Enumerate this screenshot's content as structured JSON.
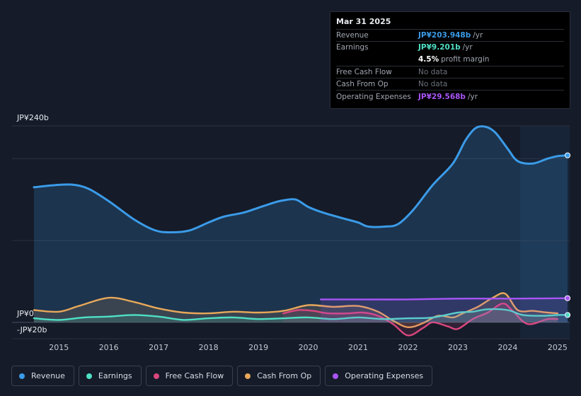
{
  "tooltip": {
    "date": "Mar 31 2025",
    "revenue": {
      "label": "Revenue",
      "value": "JP¥203.948b",
      "unit": "/yr",
      "color": "#3b9be8"
    },
    "earnings": {
      "label": "Earnings",
      "value": "JP¥9.201b",
      "unit": "/yr",
      "color": "#4fe0c5"
    },
    "margin": {
      "value": "4.5%",
      "text": "profit margin"
    },
    "fcf": {
      "label": "Free Cash Flow",
      "value": "No data"
    },
    "cfo": {
      "label": "Cash From Op",
      "value": "No data"
    },
    "opex": {
      "label": "Operating Expenses",
      "value": "JP¥29.568b",
      "unit": "/yr",
      "color": "#a855f7"
    }
  },
  "legend": [
    {
      "label": "Revenue",
      "color": "#3b9be8"
    },
    {
      "label": "Earnings",
      "color": "#4fe0c5"
    },
    {
      "label": "Free Cash Flow",
      "color": "#d9477e"
    },
    {
      "label": "Cash From Op",
      "color": "#e8a85a"
    },
    {
      "label": "Operating Expenses",
      "color": "#a855f7"
    }
  ],
  "chart_data": {
    "type": "line",
    "title": "",
    "xlabel": "",
    "ylabel": "",
    "ylim": [
      -20,
      240
    ],
    "y_tick_labels": [
      {
        "value": 240,
        "label": "JP¥240b"
      },
      {
        "value": 0,
        "label": "JP¥0"
      },
      {
        "value": -20,
        "label": "-JP¥20b"
      }
    ],
    "x_ticks": [
      2015,
      2016,
      2017,
      2018,
      2019,
      2020,
      2021,
      2022,
      2023,
      2024,
      2025
    ],
    "highlight_from": 2024.25,
    "series": [
      {
        "name": "Revenue",
        "color": "#3b9be8",
        "fill": true,
        "marker_end": true,
        "x": [
          2014.5,
          2015.0,
          2015.3,
          2015.6,
          2016.0,
          2016.5,
          2016.9,
          2017.2,
          2017.6,
          2018.0,
          2018.3,
          2018.7,
          2019.0,
          2019.3,
          2019.5,
          2019.75,
          2020.0,
          2020.3,
          2020.7,
          2021.0,
          2021.2,
          2021.55,
          2021.8,
          2022.1,
          2022.5,
          2022.9,
          2023.15,
          2023.35,
          2023.55,
          2023.75,
          2024.0,
          2024.2,
          2024.5,
          2024.8,
          2025.0,
          2025.2
        ],
        "values": [
          165,
          168,
          168,
          163,
          148,
          126,
          113,
          110,
          112,
          122,
          129,
          134,
          140,
          146,
          149,
          150,
          141,
          134,
          127,
          122,
          117,
          117,
          120,
          137,
          168,
          194,
          222,
          237,
          239,
          232,
          212,
          197,
          194,
          200,
          203,
          204
        ]
      },
      {
        "name": "Earnings",
        "color": "#4fe0c5",
        "fill": true,
        "marker_end": true,
        "x": [
          2014.5,
          2015.0,
          2015.5,
          2016.0,
          2016.5,
          2017.0,
          2017.5,
          2018.0,
          2018.5,
          2019.0,
          2019.5,
          2020.0,
          2020.5,
          2021.0,
          2021.5,
          2022.0,
          2022.5,
          2023.0,
          2023.3,
          2023.6,
          2024.0,
          2024.3,
          2024.7,
          2025.0,
          2025.2
        ],
        "values": [
          5,
          3,
          6,
          7,
          9,
          7,
          3,
          5,
          6,
          4,
          5,
          6,
          4,
          6,
          4,
          5,
          6,
          12,
          13,
          16,
          15,
          9,
          8,
          9,
          9
        ]
      },
      {
        "name": "Free Cash Flow",
        "color": "#d9477e",
        "fill": true,
        "marker_end": false,
        "x": [
          2019.5,
          2019.8,
          2020.1,
          2020.4,
          2020.8,
          2021.1,
          2021.4,
          2021.7,
          2022.0,
          2022.3,
          2022.5,
          2022.8,
          2023.0,
          2023.3,
          2023.6,
          2023.9,
          2024.1,
          2024.4,
          2024.8,
          2025.0
        ],
        "values": [
          11,
          15,
          14,
          11,
          11,
          12,
          8,
          -2,
          -16,
          -7,
          0,
          -5,
          -8,
          4,
          12,
          23,
          14,
          -2,
          4,
          4
        ]
      },
      {
        "name": "Cash From Op",
        "color": "#e8a85a",
        "fill": true,
        "marker_end": false,
        "x": [
          2014.5,
          2015.0,
          2015.4,
          2016.0,
          2016.5,
          2017.0,
          2017.5,
          2018.0,
          2018.5,
          2019.0,
          2019.5,
          2020.0,
          2020.5,
          2021.0,
          2021.4,
          2021.7,
          2022.0,
          2022.3,
          2022.6,
          2022.9,
          2023.1,
          2023.4,
          2023.7,
          2023.95,
          2024.2,
          2024.5,
          2024.8,
          2025.0
        ],
        "values": [
          15,
          13,
          20,
          30,
          25,
          17,
          12,
          11,
          13,
          12,
          14,
          21,
          19,
          20,
          13,
          2,
          -6,
          -1,
          8,
          6,
          11,
          19,
          30,
          35,
          15,
          14,
          12,
          11
        ]
      },
      {
        "name": "Operating Expenses",
        "color": "#a855f7",
        "fill": true,
        "marker_end": true,
        "x": [
          2020.25,
          2021.0,
          2022.0,
          2023.0,
          2024.0,
          2025.2
        ],
        "values": [
          28,
          28,
          28,
          29,
          29,
          29.5
        ]
      }
    ]
  }
}
